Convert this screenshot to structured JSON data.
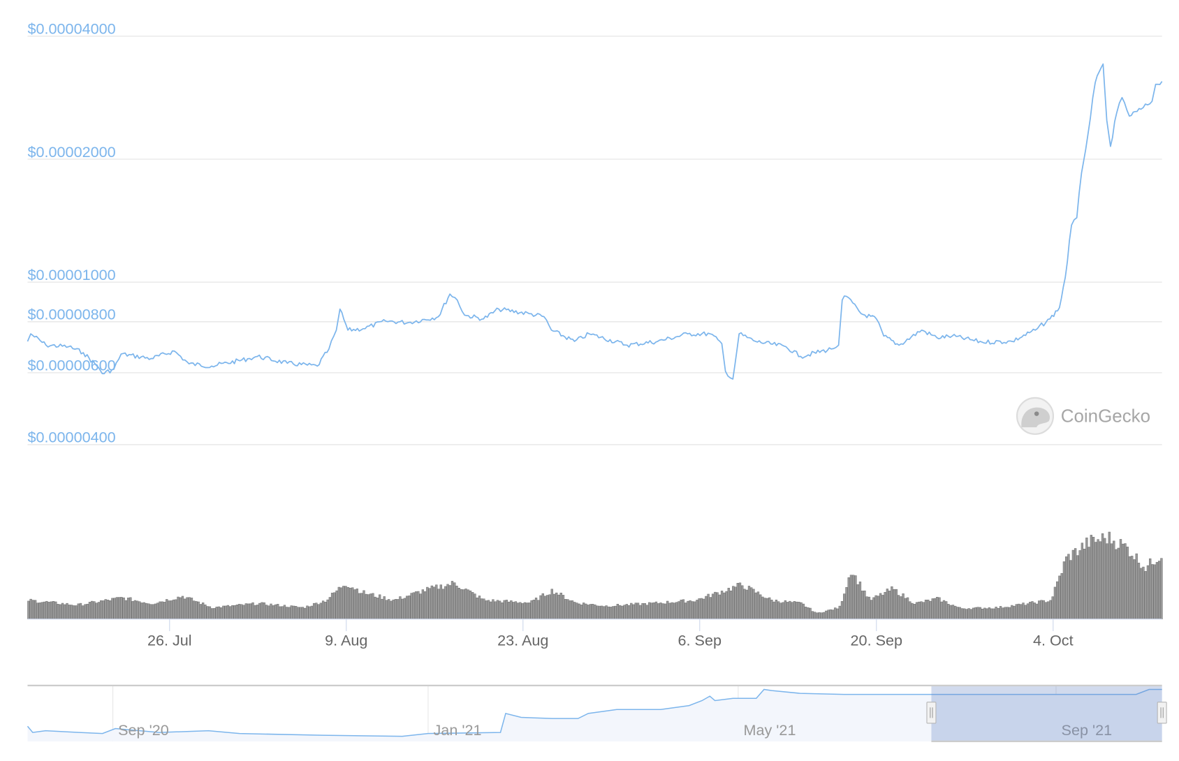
{
  "chart_data": {
    "type": "line",
    "y_scale": "log",
    "ylim": [
      4e-06,
      4e-05
    ],
    "xlim": [
      "2021-07-14T18:00",
      "2021-10-12T15:00"
    ],
    "grid": true,
    "line_color": "#7cb5ec",
    "volume_color": "#999999",
    "y_ticks": [
      {
        "value": 4e-05,
        "label": "$0.00004000"
      },
      {
        "value": 2e-05,
        "label": "$0.00002000"
      },
      {
        "value": 1e-05,
        "label": "$0.00001000"
      },
      {
        "value": 8e-06,
        "label": "$0.00000800"
      },
      {
        "value": 6e-06,
        "label": "$0.00000600"
      },
      {
        "value": 4e-06,
        "label": "$0.00000400"
      }
    ],
    "x_ticks": [
      {
        "date": "2021-07-26",
        "label": "26. Jul"
      },
      {
        "date": "2021-08-09",
        "label": "9. Aug"
      },
      {
        "date": "2021-08-23",
        "label": "23. Aug"
      },
      {
        "date": "2021-09-06",
        "label": "6. Sep"
      },
      {
        "date": "2021-09-20",
        "label": "20. Sep"
      },
      {
        "date": "2021-10-04",
        "label": "4. Oct"
      }
    ],
    "price": [
      [
        "2021-07-14T18:00",
        7.16e-06
      ],
      [
        "2021-07-15T00:00",
        7.47e-06
      ],
      [
        "2021-07-16T05:00",
        7.01e-06
      ],
      [
        "2021-07-18T00:00",
        6.95e-06
      ],
      [
        "2021-07-19T04:00",
        6.72e-06
      ],
      [
        "2021-07-20T09:00",
        6.18e-06
      ],
      [
        "2021-07-20T16:00",
        5.97e-06
      ],
      [
        "2021-07-21T14:00",
        6.12e-06
      ],
      [
        "2021-07-22T04:00",
        6.67e-06
      ],
      [
        "2021-07-24T13:00",
        6.5e-06
      ],
      [
        "2021-07-26T09:00",
        6.78e-06
      ],
      [
        "2021-07-27T13:00",
        6.31e-06
      ],
      [
        "2021-07-29T08:00",
        6.23e-06
      ],
      [
        "2021-08-01T08:00",
        6.5e-06
      ],
      [
        "2021-08-01T23:00",
        6.58e-06
      ],
      [
        "2021-08-04T08:00",
        6.33e-06
      ],
      [
        "2021-08-06T17:00",
        6.23e-06
      ],
      [
        "2021-08-07T15:00",
        6.86e-06
      ],
      [
        "2021-08-08T05:00",
        7.63e-06
      ],
      [
        "2021-08-08T12:00",
        8.59e-06
      ],
      [
        "2021-08-09T03:00",
        7.63e-06
      ],
      [
        "2021-08-10T08:00",
        7.69e-06
      ],
      [
        "2021-08-12T03:00",
        8.03e-06
      ],
      [
        "2021-08-13T22:00",
        7.96e-06
      ],
      [
        "2021-08-16T07:00",
        8.23e-06
      ],
      [
        "2021-08-17T05:00",
        9.35e-06
      ],
      [
        "2021-08-17T19:00",
        9.04e-06
      ],
      [
        "2021-08-18T09:00",
        8.3e-06
      ],
      [
        "2021-08-19T21:00",
        8.13e-06
      ],
      [
        "2021-08-21T02:00",
        8.59e-06
      ],
      [
        "2021-08-23T12:00",
        8.37e-06
      ],
      [
        "2021-08-24T16:00",
        8.23e-06
      ],
      [
        "2021-08-25T06:00",
        7.63e-06
      ],
      [
        "2021-08-27T02:00",
        7.16e-06
      ],
      [
        "2021-08-28T06:00",
        7.47e-06
      ],
      [
        "2021-08-31T06:00",
        7.01e-06
      ],
      [
        "2021-09-02T16:00",
        7.16e-06
      ],
      [
        "2021-09-05T01:00",
        7.47e-06
      ],
      [
        "2021-09-06T20:00",
        7.47e-06
      ],
      [
        "2021-09-07T18:00",
        7.07e-06
      ],
      [
        "2021-09-08T01:00",
        6.05e-06
      ],
      [
        "2021-09-08T15:00",
        5.79e-06
      ],
      [
        "2021-09-09T03:00",
        7.47e-06
      ],
      [
        "2021-09-10T10:00",
        7.16e-06
      ],
      [
        "2021-09-12T20:00",
        6.95e-06
      ],
      [
        "2021-09-14T00:00",
        6.58e-06
      ],
      [
        "2021-09-16T10:00",
        6.86e-06
      ],
      [
        "2021-09-17T00:00",
        7.01e-06
      ],
      [
        "2021-09-17T07:00",
        9.04e-06
      ],
      [
        "2021-09-17T15:00",
        9.23e-06
      ],
      [
        "2021-09-18T19:00",
        8.37e-06
      ],
      [
        "2021-09-20T00:00",
        8.13e-06
      ],
      [
        "2021-09-20T14:00",
        7.38e-06
      ],
      [
        "2021-09-21T19:00",
        7.01e-06
      ],
      [
        "2021-09-23T14:00",
        7.63e-06
      ],
      [
        "2021-09-24T19:00",
        7.31e-06
      ],
      [
        "2021-09-26T00:00",
        7.38e-06
      ],
      [
        "2021-09-28T09:00",
        7.13e-06
      ],
      [
        "2021-09-30T18:00",
        7.16e-06
      ],
      [
        "2021-10-02T14:00",
        7.63e-06
      ],
      [
        "2021-10-03T18:00",
        8.13e-06
      ],
      [
        "2021-10-04T12:00",
        8.66e-06
      ],
      [
        "2021-10-04T23:00",
        1.026e-05
      ],
      [
        "2021-10-05T11:00",
        1.379e-05
      ],
      [
        "2021-10-05T21:00",
        1.438e-05
      ],
      [
        "2021-10-06T06:00",
        1.853e-05
      ],
      [
        "2021-10-06T18:00",
        2.29e-05
      ],
      [
        "2021-10-07T08:00",
        3.08e-05
      ],
      [
        "2021-10-07T23:00",
        3.42e-05
      ],
      [
        "2021-10-08T06:00",
        2.49e-05
      ],
      [
        "2021-10-08T13:00",
        2.15e-05
      ],
      [
        "2021-10-09T01:00",
        2.6e-05
      ],
      [
        "2021-10-09T11:00",
        2.83e-05
      ],
      [
        "2021-10-10T01:00",
        2.55e-05
      ],
      [
        "2021-10-10T23:00",
        2.65e-05
      ],
      [
        "2021-10-11T20:00",
        2.77e-05
      ],
      [
        "2021-10-12T03:00",
        3.05e-05
      ],
      [
        "2021-10-12T15:00",
        3.1e-05
      ]
    ],
    "volume_relative": [
      [
        "2021-07-14T18:00",
        23
      ],
      [
        "2021-07-18T14:00",
        17
      ],
      [
        "2021-07-22T04:00",
        26
      ],
      [
        "2021-07-24T13:00",
        19
      ],
      [
        "2021-07-26T23:00",
        28
      ],
      [
        "2021-07-29T08:00",
        14
      ],
      [
        "2021-08-01T23:00",
        19
      ],
      [
        "2021-08-05T13:00",
        14
      ],
      [
        "2021-08-07T08:00",
        23
      ],
      [
        "2021-08-08T20:00",
        44
      ],
      [
        "2021-08-10T08:00",
        32
      ],
      [
        "2021-08-12T17:00",
        23
      ],
      [
        "2021-08-15T02:00",
        35
      ],
      [
        "2021-08-17T12:00",
        44
      ],
      [
        "2021-08-19T21:00",
        23
      ],
      [
        "2021-08-23T12:00",
        20
      ],
      [
        "2021-08-25T06:00",
        35
      ],
      [
        "2021-08-27T02:00",
        20
      ],
      [
        "2021-08-29T11:00",
        16
      ],
      [
        "2021-09-02T01:00",
        19
      ],
      [
        "2021-09-05T15:00",
        23
      ],
      [
        "2021-09-09T06:00",
        42
      ],
      [
        "2021-09-11T15:00",
        23
      ],
      [
        "2021-09-14T00:00",
        19
      ],
      [
        "2021-09-15T05:00",
        7
      ],
      [
        "2021-09-17T00:00",
        14
      ],
      [
        "2021-09-17T22:00",
        60
      ],
      [
        "2021-09-19T10:00",
        23
      ],
      [
        "2021-09-21T05:00",
        37
      ],
      [
        "2021-09-23T00:00",
        19
      ],
      [
        "2021-09-24T19:00",
        25
      ],
      [
        "2021-09-26T14:00",
        13
      ],
      [
        "2021-09-29T14:00",
        14
      ],
      [
        "2021-10-01T23:00",
        19
      ],
      [
        "2021-10-03T18:00",
        23
      ],
      [
        "2021-10-04T23:00",
        74
      ],
      [
        "2021-10-06T18:00",
        94
      ],
      [
        "2021-10-08T06:00",
        100
      ],
      [
        "2021-10-09T18:00",
        88
      ],
      [
        "2021-10-11T06:00",
        63
      ],
      [
        "2021-10-12T15:00",
        81
      ]
    ],
    "navigator": {
      "xlim": [
        "2020-07-30",
        "2021-10-12"
      ],
      "selection": [
        "2021-07-14T18:00",
        "2021-10-12T15:00"
      ],
      "x_ticks": [
        {
          "date": "2020-09-01",
          "label": "Sep '20"
        },
        {
          "date": "2021-01-01",
          "label": "Jan '21"
        },
        {
          "date": "2021-05-01",
          "label": "May '21"
        },
        {
          "date": "2021-09-01",
          "label": "Sep '21"
        }
      ],
      "series_relative": [
        [
          "2020-07-30",
          27
        ],
        [
          "2020-08-01",
          16
        ],
        [
          "2020-08-06",
          19
        ],
        [
          "2020-08-19",
          16
        ],
        [
          "2020-08-28",
          14
        ],
        [
          "2020-09-02",
          23
        ],
        [
          "2020-09-19",
          16
        ],
        [
          "2020-10-08",
          19
        ],
        [
          "2020-10-20",
          14
        ],
        [
          "2020-11-21",
          11
        ],
        [
          "2020-12-22",
          9
        ],
        [
          "2021-01-01",
          14
        ],
        [
          "2021-01-29",
          16
        ],
        [
          "2021-01-31",
          50
        ],
        [
          "2021-02-06",
          43
        ],
        [
          "2021-02-18",
          41
        ],
        [
          "2021-02-28",
          41
        ],
        [
          "2021-03-04",
          50
        ],
        [
          "2021-03-15",
          57
        ],
        [
          "2021-04-01",
          57
        ],
        [
          "2021-04-12",
          64
        ],
        [
          "2021-04-17",
          73
        ],
        [
          "2021-04-20",
          81
        ],
        [
          "2021-04-22",
          73
        ],
        [
          "2021-04-29",
          77
        ],
        [
          "2021-05-08",
          77
        ],
        [
          "2021-05-11",
          93
        ],
        [
          "2021-05-14",
          91
        ],
        [
          "2021-05-25",
          86
        ],
        [
          "2021-06-11",
          84
        ],
        [
          "2021-07-09",
          84
        ],
        [
          "2021-08-06",
          84
        ],
        [
          "2021-09-01",
          84
        ],
        [
          "2021-10-02",
          84
        ],
        [
          "2021-10-07",
          93
        ],
        [
          "2021-10-12",
          93
        ]
      ]
    }
  },
  "watermark": {
    "text": "CoinGecko"
  }
}
